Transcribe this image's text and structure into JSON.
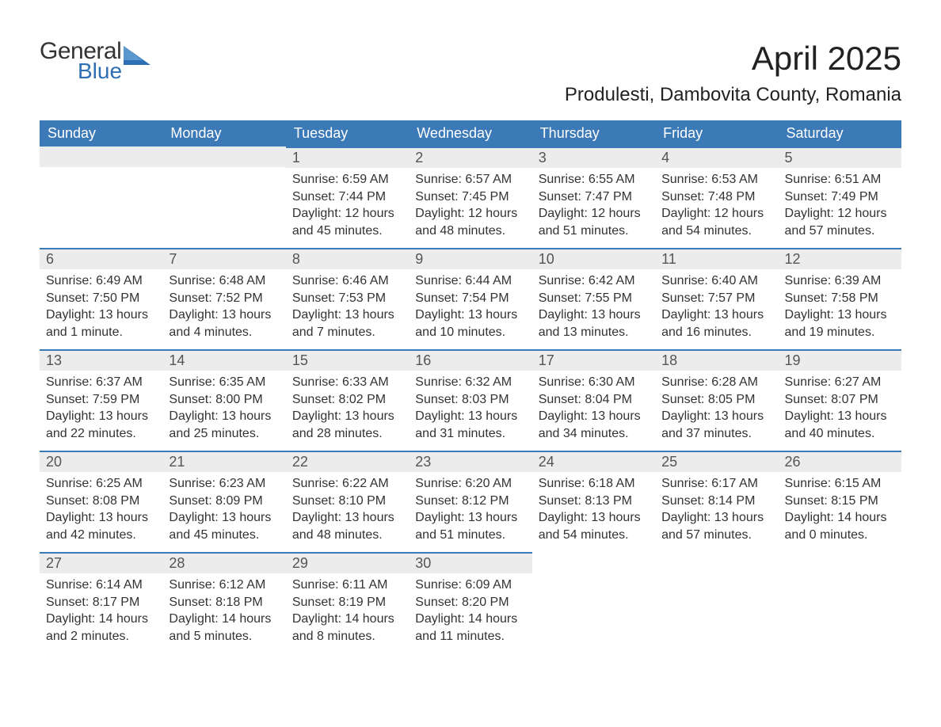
{
  "brand": {
    "part1": "General",
    "part2": "Blue"
  },
  "title": "April 2025",
  "subtitle": "Produlesti, Dambovita County, Romania",
  "colors": {
    "header_bg": "#3b79b7",
    "header_text": "#ffffff",
    "daynum_bg": "#ececec",
    "border_top": "#3b79b7",
    "body_text": "#333333",
    "logo_blue": "#2f6fb3"
  },
  "weekdays": [
    "Sunday",
    "Monday",
    "Tuesday",
    "Wednesday",
    "Thursday",
    "Friday",
    "Saturday"
  ],
  "weeks": [
    [
      {
        "day": "",
        "sunrise": "",
        "sunset": "",
        "daylight": ""
      },
      {
        "day": "",
        "sunrise": "",
        "sunset": "",
        "daylight": ""
      },
      {
        "day": "1",
        "sunrise": "Sunrise: 6:59 AM",
        "sunset": "Sunset: 7:44 PM",
        "daylight": "Daylight: 12 hours and 45 minutes."
      },
      {
        "day": "2",
        "sunrise": "Sunrise: 6:57 AM",
        "sunset": "Sunset: 7:45 PM",
        "daylight": "Daylight: 12 hours and 48 minutes."
      },
      {
        "day": "3",
        "sunrise": "Sunrise: 6:55 AM",
        "sunset": "Sunset: 7:47 PM",
        "daylight": "Daylight: 12 hours and 51 minutes."
      },
      {
        "day": "4",
        "sunrise": "Sunrise: 6:53 AM",
        "sunset": "Sunset: 7:48 PM",
        "daylight": "Daylight: 12 hours and 54 minutes."
      },
      {
        "day": "5",
        "sunrise": "Sunrise: 6:51 AM",
        "sunset": "Sunset: 7:49 PM",
        "daylight": "Daylight: 12 hours and 57 minutes."
      }
    ],
    [
      {
        "day": "6",
        "sunrise": "Sunrise: 6:49 AM",
        "sunset": "Sunset: 7:50 PM",
        "daylight": "Daylight: 13 hours and 1 minute."
      },
      {
        "day": "7",
        "sunrise": "Sunrise: 6:48 AM",
        "sunset": "Sunset: 7:52 PM",
        "daylight": "Daylight: 13 hours and 4 minutes."
      },
      {
        "day": "8",
        "sunrise": "Sunrise: 6:46 AM",
        "sunset": "Sunset: 7:53 PM",
        "daylight": "Daylight: 13 hours and 7 minutes."
      },
      {
        "day": "9",
        "sunrise": "Sunrise: 6:44 AM",
        "sunset": "Sunset: 7:54 PM",
        "daylight": "Daylight: 13 hours and 10 minutes."
      },
      {
        "day": "10",
        "sunrise": "Sunrise: 6:42 AM",
        "sunset": "Sunset: 7:55 PM",
        "daylight": "Daylight: 13 hours and 13 minutes."
      },
      {
        "day": "11",
        "sunrise": "Sunrise: 6:40 AM",
        "sunset": "Sunset: 7:57 PM",
        "daylight": "Daylight: 13 hours and 16 minutes."
      },
      {
        "day": "12",
        "sunrise": "Sunrise: 6:39 AM",
        "sunset": "Sunset: 7:58 PM",
        "daylight": "Daylight: 13 hours and 19 minutes."
      }
    ],
    [
      {
        "day": "13",
        "sunrise": "Sunrise: 6:37 AM",
        "sunset": "Sunset: 7:59 PM",
        "daylight": "Daylight: 13 hours and 22 minutes."
      },
      {
        "day": "14",
        "sunrise": "Sunrise: 6:35 AM",
        "sunset": "Sunset: 8:00 PM",
        "daylight": "Daylight: 13 hours and 25 minutes."
      },
      {
        "day": "15",
        "sunrise": "Sunrise: 6:33 AM",
        "sunset": "Sunset: 8:02 PM",
        "daylight": "Daylight: 13 hours and 28 minutes."
      },
      {
        "day": "16",
        "sunrise": "Sunrise: 6:32 AM",
        "sunset": "Sunset: 8:03 PM",
        "daylight": "Daylight: 13 hours and 31 minutes."
      },
      {
        "day": "17",
        "sunrise": "Sunrise: 6:30 AM",
        "sunset": "Sunset: 8:04 PM",
        "daylight": "Daylight: 13 hours and 34 minutes."
      },
      {
        "day": "18",
        "sunrise": "Sunrise: 6:28 AM",
        "sunset": "Sunset: 8:05 PM",
        "daylight": "Daylight: 13 hours and 37 minutes."
      },
      {
        "day": "19",
        "sunrise": "Sunrise: 6:27 AM",
        "sunset": "Sunset: 8:07 PM",
        "daylight": "Daylight: 13 hours and 40 minutes."
      }
    ],
    [
      {
        "day": "20",
        "sunrise": "Sunrise: 6:25 AM",
        "sunset": "Sunset: 8:08 PM",
        "daylight": "Daylight: 13 hours and 42 minutes."
      },
      {
        "day": "21",
        "sunrise": "Sunrise: 6:23 AM",
        "sunset": "Sunset: 8:09 PM",
        "daylight": "Daylight: 13 hours and 45 minutes."
      },
      {
        "day": "22",
        "sunrise": "Sunrise: 6:22 AM",
        "sunset": "Sunset: 8:10 PM",
        "daylight": "Daylight: 13 hours and 48 minutes."
      },
      {
        "day": "23",
        "sunrise": "Sunrise: 6:20 AM",
        "sunset": "Sunset: 8:12 PM",
        "daylight": "Daylight: 13 hours and 51 minutes."
      },
      {
        "day": "24",
        "sunrise": "Sunrise: 6:18 AM",
        "sunset": "Sunset: 8:13 PM",
        "daylight": "Daylight: 13 hours and 54 minutes."
      },
      {
        "day": "25",
        "sunrise": "Sunrise: 6:17 AM",
        "sunset": "Sunset: 8:14 PM",
        "daylight": "Daylight: 13 hours and 57 minutes."
      },
      {
        "day": "26",
        "sunrise": "Sunrise: 6:15 AM",
        "sunset": "Sunset: 8:15 PM",
        "daylight": "Daylight: 14 hours and 0 minutes."
      }
    ],
    [
      {
        "day": "27",
        "sunrise": "Sunrise: 6:14 AM",
        "sunset": "Sunset: 8:17 PM",
        "daylight": "Daylight: 14 hours and 2 minutes."
      },
      {
        "day": "28",
        "sunrise": "Sunrise: 6:12 AM",
        "sunset": "Sunset: 8:18 PM",
        "daylight": "Daylight: 14 hours and 5 minutes."
      },
      {
        "day": "29",
        "sunrise": "Sunrise: 6:11 AM",
        "sunset": "Sunset: 8:19 PM",
        "daylight": "Daylight: 14 hours and 8 minutes."
      },
      {
        "day": "30",
        "sunrise": "Sunrise: 6:09 AM",
        "sunset": "Sunset: 8:20 PM",
        "daylight": "Daylight: 14 hours and 11 minutes."
      },
      {
        "day": "",
        "sunrise": "",
        "sunset": "",
        "daylight": ""
      },
      {
        "day": "",
        "sunrise": "",
        "sunset": "",
        "daylight": ""
      },
      {
        "day": "",
        "sunrise": "",
        "sunset": "",
        "daylight": ""
      }
    ]
  ]
}
